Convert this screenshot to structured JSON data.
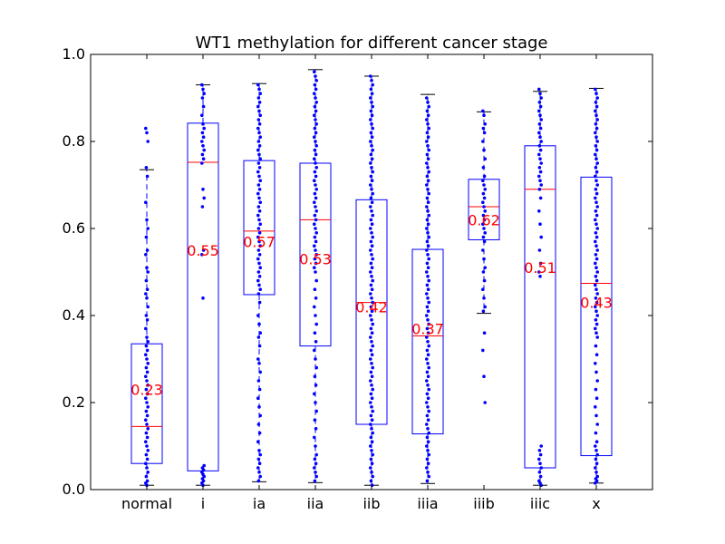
{
  "chart_data": {
    "type": "box",
    "title": "WT1 methylation for different cancer stage",
    "xlabel": "",
    "ylabel": "",
    "ylim": [
      0.0,
      1.0
    ],
    "yticks": [
      "0.0",
      "0.2",
      "0.4",
      "0.6",
      "0.8",
      "1.0"
    ],
    "categories": [
      "normal",
      "i",
      "ia",
      "iia",
      "iib",
      "iiia",
      "iiib",
      "iiic",
      "x"
    ],
    "boxes": [
      {
        "category": "normal",
        "whisker_low": 0.01,
        "q1": 0.06,
        "median": 0.145,
        "q3": 0.335,
        "whisker_high": 0.735,
        "mean_label": "0.23",
        "mean": 0.23
      },
      {
        "category": "i",
        "whisker_low": 0.01,
        "q1": 0.043,
        "median": 0.752,
        "q3": 0.842,
        "whisker_high": 0.93,
        "mean_label": "0.55",
        "mean": 0.55
      },
      {
        "category": "ia",
        "whisker_low": 0.018,
        "q1": 0.448,
        "median": 0.594,
        "q3": 0.756,
        "whisker_high": 0.933,
        "mean_label": "0.57",
        "mean": 0.57
      },
      {
        "category": "iia",
        "whisker_low": 0.016,
        "q1": 0.33,
        "median": 0.62,
        "q3": 0.75,
        "whisker_high": 0.965,
        "mean_label": "0.53",
        "mean": 0.53
      },
      {
        "category": "iib",
        "whisker_low": 0.01,
        "q1": 0.15,
        "median": 0.43,
        "q3": 0.666,
        "whisker_high": 0.95,
        "mean_label": "0.42",
        "mean": 0.42
      },
      {
        "category": "iiia",
        "whisker_low": 0.014,
        "q1": 0.128,
        "median": 0.353,
        "q3": 0.552,
        "whisker_high": 0.908,
        "mean_label": "0.37",
        "mean": 0.37
      },
      {
        "category": "iiib",
        "whisker_low": 0.405,
        "q1": 0.574,
        "median": 0.65,
        "q3": 0.713,
        "whisker_high": 0.868,
        "mean_label": "0.62",
        "mean": 0.62
      },
      {
        "category": "iiic",
        "whisker_low": 0.01,
        "q1": 0.05,
        "median": 0.69,
        "q3": 0.79,
        "whisker_high": 0.915,
        "mean_label": "0.51",
        "mean": 0.51
      },
      {
        "category": "x",
        "whisker_low": 0.015,
        "q1": 0.078,
        "median": 0.474,
        "q3": 0.718,
        "whisker_high": 0.922,
        "mean_label": "0.43",
        "mean": 0.43
      }
    ],
    "points": {
      "normal": [
        0.83,
        0.82,
        0.8,
        0.74,
        0.72,
        0.66,
        0.62,
        0.6,
        0.58,
        0.55,
        0.54,
        0.51,
        0.5,
        0.48,
        0.46,
        0.45,
        0.44,
        0.42,
        0.4,
        0.39,
        0.37,
        0.35,
        0.34,
        0.33,
        0.32,
        0.31,
        0.3,
        0.29,
        0.28,
        0.27,
        0.26,
        0.25,
        0.24,
        0.23,
        0.22,
        0.21,
        0.2,
        0.19,
        0.18,
        0.17,
        0.16,
        0.15,
        0.14,
        0.13,
        0.12,
        0.11,
        0.1,
        0.09,
        0.08,
        0.07,
        0.06,
        0.05,
        0.04,
        0.03,
        0.02,
        0.015,
        0.01
      ],
      "i": [
        0.93,
        0.92,
        0.91,
        0.9,
        0.88,
        0.86,
        0.84,
        0.83,
        0.82,
        0.81,
        0.8,
        0.79,
        0.78,
        0.77,
        0.76,
        0.75,
        0.69,
        0.67,
        0.65,
        0.55,
        0.54,
        0.44,
        0.055,
        0.05,
        0.045,
        0.04,
        0.035,
        0.03,
        0.025,
        0.02,
        0.015,
        0.01
      ],
      "ia": [
        0.93,
        0.92,
        0.91,
        0.9,
        0.89,
        0.88,
        0.87,
        0.86,
        0.85,
        0.84,
        0.83,
        0.82,
        0.81,
        0.8,
        0.79,
        0.78,
        0.77,
        0.76,
        0.75,
        0.74,
        0.73,
        0.72,
        0.71,
        0.7,
        0.69,
        0.68,
        0.67,
        0.66,
        0.65,
        0.64,
        0.63,
        0.62,
        0.61,
        0.6,
        0.59,
        0.58,
        0.57,
        0.56,
        0.55,
        0.54,
        0.53,
        0.52,
        0.51,
        0.5,
        0.49,
        0.48,
        0.47,
        0.46,
        0.45,
        0.43,
        0.4,
        0.38,
        0.36,
        0.35,
        0.33,
        0.3,
        0.29,
        0.27,
        0.25,
        0.23,
        0.21,
        0.19,
        0.17,
        0.15,
        0.13,
        0.11,
        0.09,
        0.08,
        0.07,
        0.06,
        0.05,
        0.04,
        0.03,
        0.02
      ],
      "iia": [
        0.96,
        0.95,
        0.94,
        0.93,
        0.92,
        0.91,
        0.9,
        0.89,
        0.88,
        0.87,
        0.86,
        0.85,
        0.84,
        0.83,
        0.82,
        0.81,
        0.8,
        0.79,
        0.78,
        0.77,
        0.76,
        0.75,
        0.74,
        0.73,
        0.72,
        0.71,
        0.7,
        0.69,
        0.68,
        0.67,
        0.66,
        0.65,
        0.64,
        0.63,
        0.62,
        0.61,
        0.6,
        0.59,
        0.58,
        0.57,
        0.56,
        0.55,
        0.54,
        0.53,
        0.52,
        0.51,
        0.5,
        0.48,
        0.46,
        0.44,
        0.42,
        0.4,
        0.38,
        0.36,
        0.34,
        0.32,
        0.3,
        0.28,
        0.26,
        0.24,
        0.22,
        0.2,
        0.18,
        0.16,
        0.14,
        0.12,
        0.1,
        0.08,
        0.07,
        0.06,
        0.05,
        0.04,
        0.03,
        0.02
      ],
      "iib": [
        0.95,
        0.94,
        0.93,
        0.92,
        0.91,
        0.9,
        0.89,
        0.88,
        0.87,
        0.86,
        0.85,
        0.84,
        0.83,
        0.82,
        0.81,
        0.8,
        0.79,
        0.78,
        0.77,
        0.76,
        0.75,
        0.74,
        0.73,
        0.72,
        0.71,
        0.7,
        0.69,
        0.68,
        0.67,
        0.66,
        0.65,
        0.64,
        0.63,
        0.62,
        0.61,
        0.6,
        0.59,
        0.58,
        0.57,
        0.56,
        0.55,
        0.54,
        0.53,
        0.52,
        0.51,
        0.5,
        0.49,
        0.48,
        0.47,
        0.46,
        0.45,
        0.44,
        0.43,
        0.42,
        0.41,
        0.4,
        0.39,
        0.38,
        0.37,
        0.36,
        0.35,
        0.34,
        0.33,
        0.32,
        0.31,
        0.3,
        0.29,
        0.28,
        0.27,
        0.26,
        0.25,
        0.24,
        0.23,
        0.22,
        0.21,
        0.2,
        0.19,
        0.18,
        0.17,
        0.16,
        0.15,
        0.14,
        0.13,
        0.12,
        0.11,
        0.1,
        0.09,
        0.08,
        0.07,
        0.06,
        0.05,
        0.04,
        0.03,
        0.02,
        0.01
      ],
      "iiia": [
        0.9,
        0.89,
        0.88,
        0.87,
        0.86,
        0.85,
        0.84,
        0.83,
        0.82,
        0.81,
        0.8,
        0.79,
        0.78,
        0.77,
        0.76,
        0.75,
        0.74,
        0.73,
        0.72,
        0.71,
        0.7,
        0.69,
        0.68,
        0.67,
        0.66,
        0.65,
        0.64,
        0.63,
        0.62,
        0.61,
        0.6,
        0.59,
        0.58,
        0.57,
        0.56,
        0.55,
        0.54,
        0.53,
        0.52,
        0.51,
        0.5,
        0.49,
        0.48,
        0.47,
        0.46,
        0.45,
        0.44,
        0.43,
        0.42,
        0.41,
        0.4,
        0.39,
        0.38,
        0.37,
        0.36,
        0.35,
        0.34,
        0.33,
        0.32,
        0.31,
        0.3,
        0.29,
        0.28,
        0.27,
        0.26,
        0.25,
        0.24,
        0.23,
        0.22,
        0.21,
        0.2,
        0.19,
        0.18,
        0.17,
        0.16,
        0.15,
        0.14,
        0.13,
        0.12,
        0.11,
        0.1,
        0.09,
        0.08,
        0.07,
        0.06,
        0.05,
        0.04,
        0.03,
        0.02
      ],
      "iiib": [
        0.87,
        0.86,
        0.84,
        0.83,
        0.82,
        0.8,
        0.78,
        0.76,
        0.74,
        0.72,
        0.71,
        0.7,
        0.69,
        0.68,
        0.67,
        0.66,
        0.65,
        0.64,
        0.63,
        0.62,
        0.61,
        0.6,
        0.59,
        0.58,
        0.57,
        0.55,
        0.53,
        0.51,
        0.5,
        0.48,
        0.46,
        0.44,
        0.42,
        0.41,
        0.36,
        0.32,
        0.26,
        0.2
      ],
      "iiic": [
        0.92,
        0.91,
        0.9,
        0.89,
        0.88,
        0.87,
        0.86,
        0.85,
        0.84,
        0.83,
        0.82,
        0.81,
        0.8,
        0.79,
        0.78,
        0.77,
        0.76,
        0.75,
        0.74,
        0.73,
        0.72,
        0.71,
        0.7,
        0.69,
        0.67,
        0.64,
        0.61,
        0.58,
        0.55,
        0.52,
        0.5,
        0.49,
        0.1,
        0.09,
        0.08,
        0.07,
        0.06,
        0.05,
        0.04,
        0.03,
        0.02,
        0.015,
        0.01
      ],
      "x": [
        0.92,
        0.91,
        0.9,
        0.89,
        0.88,
        0.87,
        0.86,
        0.85,
        0.84,
        0.83,
        0.82,
        0.81,
        0.8,
        0.79,
        0.78,
        0.77,
        0.76,
        0.75,
        0.74,
        0.73,
        0.72,
        0.71,
        0.7,
        0.69,
        0.68,
        0.67,
        0.66,
        0.65,
        0.64,
        0.63,
        0.62,
        0.61,
        0.6,
        0.59,
        0.58,
        0.57,
        0.56,
        0.55,
        0.54,
        0.53,
        0.52,
        0.51,
        0.5,
        0.49,
        0.48,
        0.47,
        0.46,
        0.45,
        0.44,
        0.43,
        0.42,
        0.41,
        0.4,
        0.39,
        0.38,
        0.37,
        0.36,
        0.35,
        0.33,
        0.31,
        0.29,
        0.27,
        0.25,
        0.23,
        0.21,
        0.19,
        0.17,
        0.15,
        0.13,
        0.11,
        0.1,
        0.09,
        0.08,
        0.07,
        0.06,
        0.05,
        0.04,
        0.03,
        0.025,
        0.02,
        0.015
      ]
    },
    "grid": false,
    "legend": "none",
    "colors": {
      "box": "#0000ff",
      "median": "#ff0000",
      "whisker": "#0000ff",
      "points": "#0000ff",
      "mean_label": "#ff0000",
      "axes": "#000000"
    }
  }
}
